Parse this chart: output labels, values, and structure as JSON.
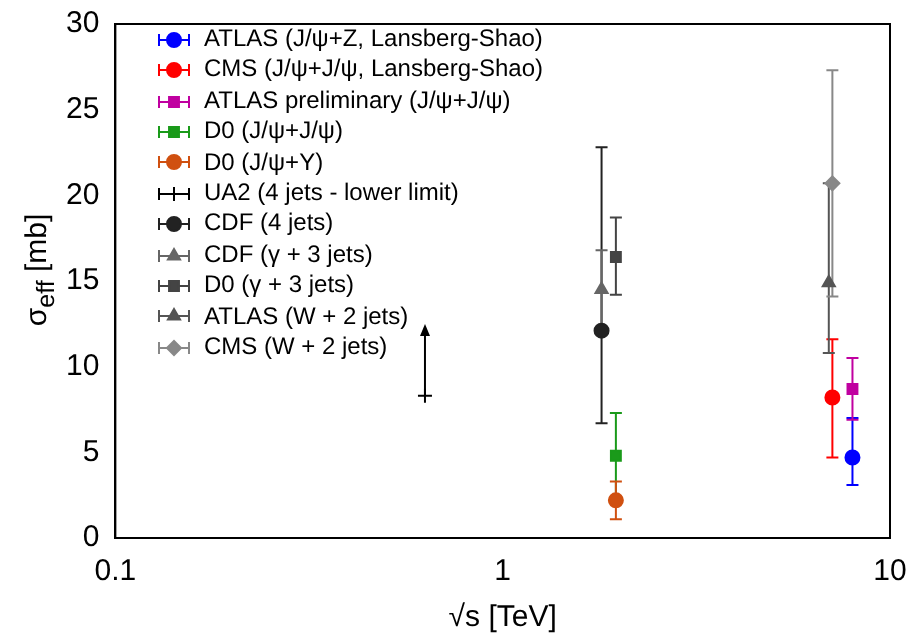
{
  "chart_data": {
    "type": "scatter",
    "xlabel": "√s [TeV]",
    "ylabel": "σ$_{eff}$ [mb]",
    "log": "x",
    "xlim": [
      0.1,
      10
    ],
    "xticks": [
      0.1,
      1,
      10
    ],
    "ylim": [
      0,
      30
    ],
    "yticks": [
      0,
      5,
      10,
      15,
      20,
      25,
      30
    ],
    "grid": false,
    "legend": "top left",
    "series": [
      {
        "name": "ATLAS (J/ψ+Z, Lansberg-Shao)",
        "color": "#0000ff",
        "marker": "circle",
        "x": [
          8
        ],
        "values": [
          4.7
        ],
        "errors": [
          [
            3.1,
            7.0
          ]
        ]
      },
      {
        "name": "CMS (J/ψ+J/ψ, Lansberg-Shao)",
        "color": "#ff0000",
        "marker": "circle",
        "x": [
          7.1
        ],
        "values": [
          8.2
        ],
        "errors": [
          [
            4.7,
            11.6
          ]
        ]
      },
      {
        "name": "ATLAS preliminary (J/ψ+J/ψ)",
        "color": "#c000a0",
        "marker": "square",
        "x": [
          8
        ],
        "values": [
          8.7
        ],
        "errors": [
          1.8
        ]
      },
      {
        "name": "D0 (J/ψ+J/ψ)",
        "color": "#1a9a1a",
        "marker": "square",
        "x": [
          1.96
        ],
        "values": [
          4.8
        ],
        "errors": [
          2.5
        ]
      },
      {
        "name": "D0 (J/ψ+Υ)",
        "color": "#d05010",
        "marker": "circle",
        "x": [
          1.96
        ],
        "values": [
          2.2
        ],
        "errors": [
          1.1
        ]
      },
      {
        "name": "UA2 (4 jets - lower limit)",
        "color": "#000000",
        "marker": "cross",
        "x": [
          0.63
        ],
        "values": [
          8.3
        ],
        "errors": [
          [
            8.3,
            12.2
          ]
        ]
      },
      {
        "name": "CDF (4 jets)",
        "color": "#222222",
        "marker": "circle",
        "x": [
          1.8
        ],
        "values": [
          12.1
        ],
        "errors": [
          [
            6.7,
            22.8
          ]
        ]
      },
      {
        "name": "CDF (γ + 3 jets)",
        "color": "#666666",
        "marker": "triangle",
        "x": [
          1.8
        ],
        "values": [
          14.5
        ],
        "errors": [
          2.3
        ]
      },
      {
        "name": "D0 (γ + 3 jets)",
        "color": "#444444",
        "marker": "square",
        "x": [
          1.96
        ],
        "values": [
          16.4
        ],
        "errors": [
          [
            14.2,
            18.7
          ]
        ]
      },
      {
        "name": "ATLAS (W + 2 jets)",
        "color": "#555555",
        "marker": "triangle",
        "x": [
          6.95
        ],
        "values": [
          14.9
        ],
        "errors": [
          [
            10.8,
            20.7
          ]
        ]
      },
      {
        "name": "CMS (W + 2 jets)",
        "color": "#888888",
        "marker": "diamond",
        "x": [
          7.1
        ],
        "values": [
          20.7
        ],
        "errors": [
          [
            14.1,
            27.3
          ]
        ]
      }
    ]
  }
}
